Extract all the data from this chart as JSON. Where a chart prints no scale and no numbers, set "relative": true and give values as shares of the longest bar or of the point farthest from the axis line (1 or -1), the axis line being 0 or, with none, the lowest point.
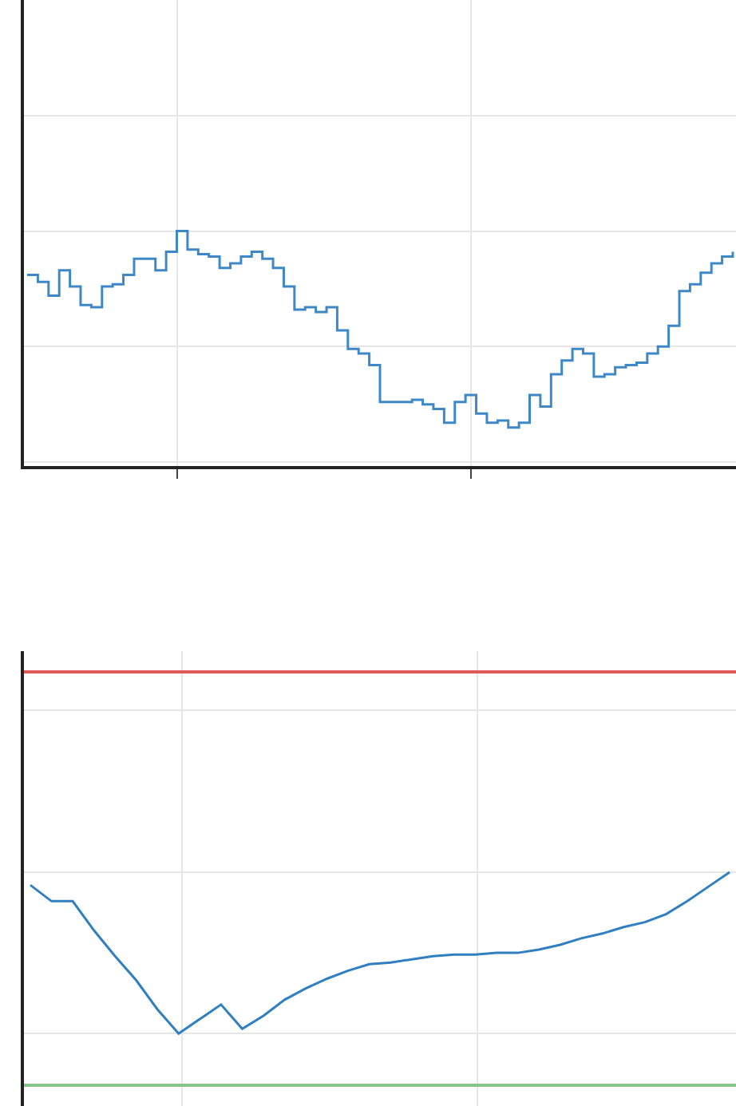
{
  "chart_data": [
    {
      "type": "step",
      "relative": true,
      "grid": true,
      "color": "#3f88c8",
      "categories": [
        null,
        null,
        null,
        null,
        null,
        null,
        null,
        null,
        null,
        null,
        null,
        null,
        null,
        null,
        null,
        null,
        null,
        null,
        null,
        null,
        null,
        null,
        null,
        null,
        null,
        null,
        null,
        null,
        null,
        null,
        null,
        null,
        null,
        null,
        null,
        null,
        null,
        null,
        null,
        null,
        null,
        null,
        null,
        null,
        null,
        null,
        null,
        null,
        null,
        null,
        null,
        null,
        null,
        null,
        null,
        null,
        null,
        null,
        null,
        null,
        null,
        null,
        null,
        null,
        null,
        null,
        null
      ],
      "values": [
        0.81,
        0.78,
        0.72,
        0.83,
        0.76,
        0.68,
        0.67,
        0.76,
        0.77,
        0.81,
        0.88,
        0.88,
        0.83,
        0.91,
        1.0,
        0.92,
        0.9,
        0.89,
        0.84,
        0.86,
        0.89,
        0.91,
        0.88,
        0.84,
        0.76,
        0.66,
        0.67,
        0.65,
        0.67,
        0.57,
        0.49,
        0.47,
        0.42,
        0.26,
        0.26,
        0.26,
        0.27,
        0.25,
        0.23,
        0.17,
        0.26,
        0.29,
        0.21,
        0.17,
        0.18,
        0.15,
        0.17,
        0.29,
        0.24,
        0.38,
        0.44,
        0.49,
        0.47,
        0.37,
        0.38,
        0.41,
        0.42,
        0.43,
        0.47,
        0.5,
        0.59,
        0.74,
        0.77,
        0.82,
        0.86,
        0.89,
        0.91
      ]
    },
    {
      "type": "line",
      "relative": true,
      "grid": true,
      "color": "#2f7fc1",
      "categories": [
        null,
        null,
        null,
        null,
        null,
        null,
        null,
        null,
        null,
        null,
        null,
        null,
        null,
        null,
        null,
        null,
        null,
        null,
        null,
        null,
        null,
        null,
        null,
        null,
        null,
        null,
        null,
        null,
        null,
        null,
        null,
        null,
        null,
        null
      ],
      "values": [
        0.92,
        0.82,
        0.82,
        0.64,
        0.48,
        0.33,
        0.15,
        0.0,
        0.09,
        0.18,
        0.03,
        0.11,
        0.21,
        0.28,
        0.34,
        0.39,
        0.43,
        0.44,
        0.46,
        0.48,
        0.49,
        0.49,
        0.5,
        0.5,
        0.52,
        0.55,
        0.59,
        0.62,
        0.66,
        0.69,
        0.74,
        0.82,
        0.91,
        1.0
      ],
      "ref_lines": [
        {
          "axis": "y",
          "value": 2.24,
          "color": "#e05a5a"
        },
        {
          "axis": "y",
          "value": -0.32,
          "color": "#88c488"
        }
      ]
    }
  ]
}
